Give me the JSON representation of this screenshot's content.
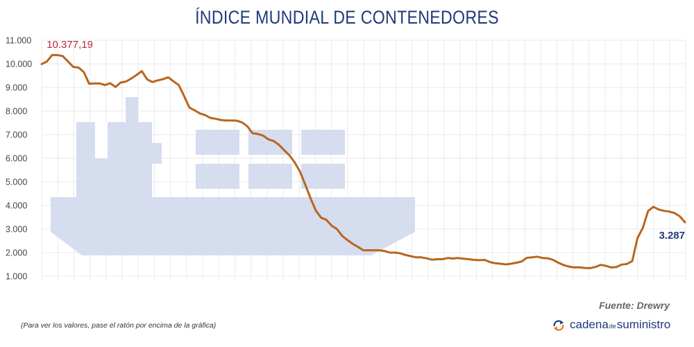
{
  "colors": {
    "title": "#1f3a7a",
    "line": "#b8651e",
    "ship": "#d5ddef",
    "grid": "#e9e9e9",
    "peak_label": "#c0263b",
    "last_label": "#1f3a7a"
  },
  "footer": {
    "source": "Fuente: Drewry",
    "note": "(Para ver los valores, pase el ratón por encima de la gráfica)",
    "brand": {
      "icon": "refresh-arrows-icon",
      "part1": "cadena",
      "part2": "de",
      "part3": "suministro"
    }
  },
  "chart_data": {
    "type": "line",
    "title": "ÍNDICE MUNDIAL DE CONTENEDORES",
    "xlabel": "",
    "ylabel": "",
    "ylim": [
      1000,
      11000
    ],
    "yticks": [
      "11.000",
      "10.000",
      "9.000",
      "8.000",
      "7.000",
      "6.000",
      "5.000",
      "4.000",
      "3.000",
      "2.000",
      "1.000"
    ],
    "grid": true,
    "annotations": {
      "peak": "10.377,19",
      "last": "3.287"
    },
    "series": [
      {
        "values": [
          9990,
          10100,
          10377.19,
          10370,
          10330,
          10100,
          9870,
          9840,
          9650,
          9160,
          9170,
          9170,
          9100,
          9180,
          9020,
          9210,
          9250,
          9380,
          9530,
          9690,
          9340,
          9230,
          9300,
          9350,
          9430,
          9260,
          9100,
          8640,
          8150,
          8030,
          7900,
          7830,
          7710,
          7670,
          7620,
          7600,
          7600,
          7590,
          7520,
          7360,
          7060,
          7030,
          6960,
          6800,
          6730,
          6570,
          6340,
          6120,
          5820,
          5430,
          4880,
          4300,
          3780,
          3480,
          3390,
          3140,
          3000,
          2710,
          2530,
          2370,
          2240,
          2100,
          2100,
          2100,
          2100,
          2070,
          2000,
          2000,
          1970,
          1900,
          1850,
          1800,
          1800,
          1760,
          1700,
          1720,
          1720,
          1770,
          1750,
          1770,
          1740,
          1720,
          1690,
          1680,
          1690,
          1600,
          1550,
          1530,
          1500,
          1530,
          1570,
          1620,
          1780,
          1800,
          1830,
          1770,
          1760,
          1690,
          1570,
          1470,
          1410,
          1370,
          1380,
          1350,
          1340,
          1390,
          1480,
          1440,
          1370,
          1390,
          1490,
          1520,
          1640,
          2620,
          3040,
          3760,
          3940,
          3830,
          3770,
          3740,
          3680,
          3540,
          3287
        ]
      }
    ]
  }
}
